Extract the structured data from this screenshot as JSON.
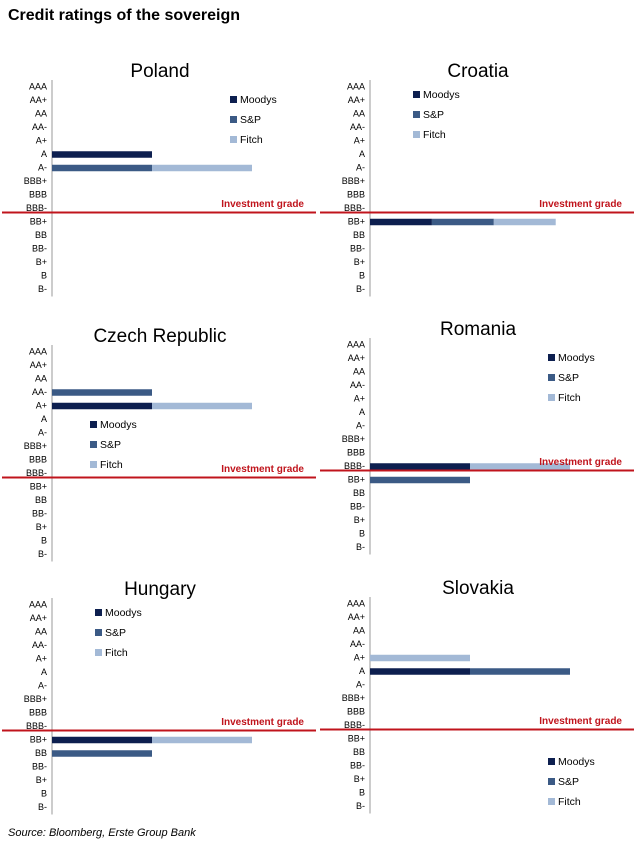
{
  "title": "Credit ratings of the sovereign",
  "source": "Source: Bloomberg, Erste Group Bank",
  "chart_data": [
    {
      "type": "bar",
      "orientation": "horizontal",
      "stacked": true,
      "title": "Poland",
      "annotation": "Investment grade",
      "legend": "upper right",
      "xlim": [
        0,
        2.6
      ],
      "categories": [
        "AAA",
        "AA+",
        "AA",
        "AA-",
        "A+",
        "A",
        "A-",
        "BBB+",
        "BBB",
        "BBB-",
        "BB+",
        "BB",
        "BB-",
        "B+",
        "B",
        "B-"
      ],
      "series": [
        {
          "name": "Moodys",
          "color": "#0d1f4f",
          "values": [
            0,
            0,
            0,
            0,
            0,
            1,
            0,
            0,
            0,
            0,
            0,
            0,
            0,
            0,
            0,
            0
          ]
        },
        {
          "name": "S&P",
          "color": "#3b5a85",
          "values": [
            0,
            0,
            0,
            0,
            0,
            0,
            1,
            0,
            0,
            0,
            0,
            0,
            0,
            0,
            0,
            0
          ]
        },
        {
          "name": "Fitch",
          "color": "#a3b9d6",
          "values": [
            0,
            0,
            0,
            0,
            0,
            0,
            1,
            0,
            0,
            0,
            0,
            0,
            0,
            0,
            0,
            0
          ]
        }
      ]
    },
    {
      "type": "bar",
      "orientation": "horizontal",
      "stacked": true,
      "title": "Croatia",
      "annotation": "Investment grade",
      "legend": "upper left",
      "xlim": [
        0,
        4.2
      ],
      "categories": [
        "AAA",
        "AA+",
        "AA",
        "AA-",
        "A+",
        "A",
        "A-",
        "BBB+",
        "BBB",
        "BBB-",
        "BB+",
        "BB",
        "BB-",
        "B+",
        "B",
        "B-"
      ],
      "series": [
        {
          "name": "Moodys",
          "color": "#0d1f4f",
          "values": [
            0,
            0,
            0,
            0,
            0,
            0,
            0,
            0,
            0,
            0,
            1,
            0,
            0,
            0,
            0,
            0
          ]
        },
        {
          "name": "S&P",
          "color": "#3b5a85",
          "values": [
            0,
            0,
            0,
            0,
            0,
            0,
            0,
            0,
            0,
            0,
            1,
            0,
            0,
            0,
            0,
            0
          ]
        },
        {
          "name": "Fitch",
          "color": "#a3b9d6",
          "values": [
            0,
            0,
            0,
            0,
            0,
            0,
            0,
            0,
            0,
            0,
            1,
            0,
            0,
            0,
            0,
            0
          ]
        }
      ]
    },
    {
      "type": "bar",
      "orientation": "horizontal",
      "stacked": true,
      "title": "Czech Republic",
      "annotation": "Investment grade",
      "legend": "center left",
      "xlim": [
        0,
        2.6
      ],
      "categories": [
        "AAA",
        "AA+",
        "AA",
        "AA-",
        "A+",
        "A",
        "A-",
        "BBB+",
        "BBB",
        "BBB-",
        "BB+",
        "BB",
        "BB-",
        "B+",
        "B",
        "B-"
      ],
      "series": [
        {
          "name": "Moodys",
          "color": "#0d1f4f",
          "values": [
            0,
            0,
            0,
            0,
            1,
            0,
            0,
            0,
            0,
            0,
            0,
            0,
            0,
            0,
            0,
            0
          ]
        },
        {
          "name": "S&P",
          "color": "#3b5a85",
          "values": [
            0,
            0,
            0,
            1,
            0,
            0,
            0,
            0,
            0,
            0,
            0,
            0,
            0,
            0,
            0,
            0
          ]
        },
        {
          "name": "Fitch",
          "color": "#a3b9d6",
          "values": [
            0,
            0,
            0,
            0,
            1,
            0,
            0,
            0,
            0,
            0,
            0,
            0,
            0,
            0,
            0,
            0
          ]
        }
      ]
    },
    {
      "type": "bar",
      "orientation": "horizontal",
      "stacked": true,
      "title": "Romania",
      "annotation": "Investment grade",
      "legend": "upper right",
      "xlim": [
        0,
        2.6
      ],
      "categories": [
        "AAA",
        "AA+",
        "AA",
        "AA-",
        "A+",
        "A",
        "A-",
        "BBB+",
        "BBB",
        "BBB-",
        "BB+",
        "BB",
        "BB-",
        "B+",
        "B",
        "B-"
      ],
      "series": [
        {
          "name": "Moodys",
          "color": "#0d1f4f",
          "values": [
            0,
            0,
            0,
            0,
            0,
            0,
            0,
            0,
            0,
            1,
            0,
            0,
            0,
            0,
            0,
            0
          ]
        },
        {
          "name": "S&P",
          "color": "#3b5a85",
          "values": [
            0,
            0,
            0,
            0,
            0,
            0,
            0,
            0,
            0,
            0,
            1,
            0,
            0,
            0,
            0,
            0
          ]
        },
        {
          "name": "Fitch",
          "color": "#a3b9d6",
          "values": [
            0,
            0,
            0,
            0,
            0,
            0,
            0,
            0,
            0,
            1,
            0,
            0,
            0,
            0,
            0,
            0
          ]
        }
      ]
    },
    {
      "type": "bar",
      "orientation": "horizontal",
      "stacked": true,
      "title": "Hungary",
      "annotation": "Investment grade",
      "legend": "upper left",
      "xlim": [
        0,
        2.6
      ],
      "categories": [
        "AAA",
        "AA+",
        "AA",
        "AA-",
        "A+",
        "A",
        "A-",
        "BBB+",
        "BBB",
        "BBB-",
        "BB+",
        "BB",
        "BB-",
        "B+",
        "B",
        "B-"
      ],
      "series": [
        {
          "name": "Moodys",
          "color": "#0d1f4f",
          "values": [
            0,
            0,
            0,
            0,
            0,
            0,
            0,
            0,
            0,
            0,
            1,
            0,
            0,
            0,
            0,
            0
          ]
        },
        {
          "name": "S&P",
          "color": "#3b5a85",
          "values": [
            0,
            0,
            0,
            0,
            0,
            0,
            0,
            0,
            0,
            0,
            0,
            1,
            0,
            0,
            0,
            0
          ]
        },
        {
          "name": "Fitch",
          "color": "#a3b9d6",
          "values": [
            0,
            0,
            0,
            0,
            0,
            0,
            0,
            0,
            0,
            0,
            1,
            0,
            0,
            0,
            0,
            0
          ]
        }
      ]
    },
    {
      "type": "bar",
      "orientation": "horizontal",
      "stacked": true,
      "title": "Slovakia",
      "annotation": "Investment grade",
      "legend": "lower right",
      "xlim": [
        0,
        2.6
      ],
      "categories": [
        "AAA",
        "AA+",
        "AA",
        "AA-",
        "A+",
        "A",
        "A-",
        "BBB+",
        "BBB",
        "BBB-",
        "BB+",
        "BB",
        "BB-",
        "B+",
        "B",
        "B-"
      ],
      "series": [
        {
          "name": "Moodys",
          "color": "#0d1f4f",
          "values": [
            0,
            0,
            0,
            0,
            0,
            1,
            0,
            0,
            0,
            0,
            0,
            0,
            0,
            0,
            0,
            0
          ]
        },
        {
          "name": "S&P",
          "color": "#3b5a85",
          "values": [
            0,
            0,
            0,
            0,
            0,
            1,
            0,
            0,
            0,
            0,
            0,
            0,
            0,
            0,
            0,
            0
          ]
        },
        {
          "name": "Fitch",
          "color": "#a3b9d6",
          "values": [
            0,
            0,
            0,
            0,
            1,
            0,
            0,
            0,
            0,
            0,
            0,
            0,
            0,
            0,
            0,
            0
          ]
        }
      ]
    }
  ]
}
